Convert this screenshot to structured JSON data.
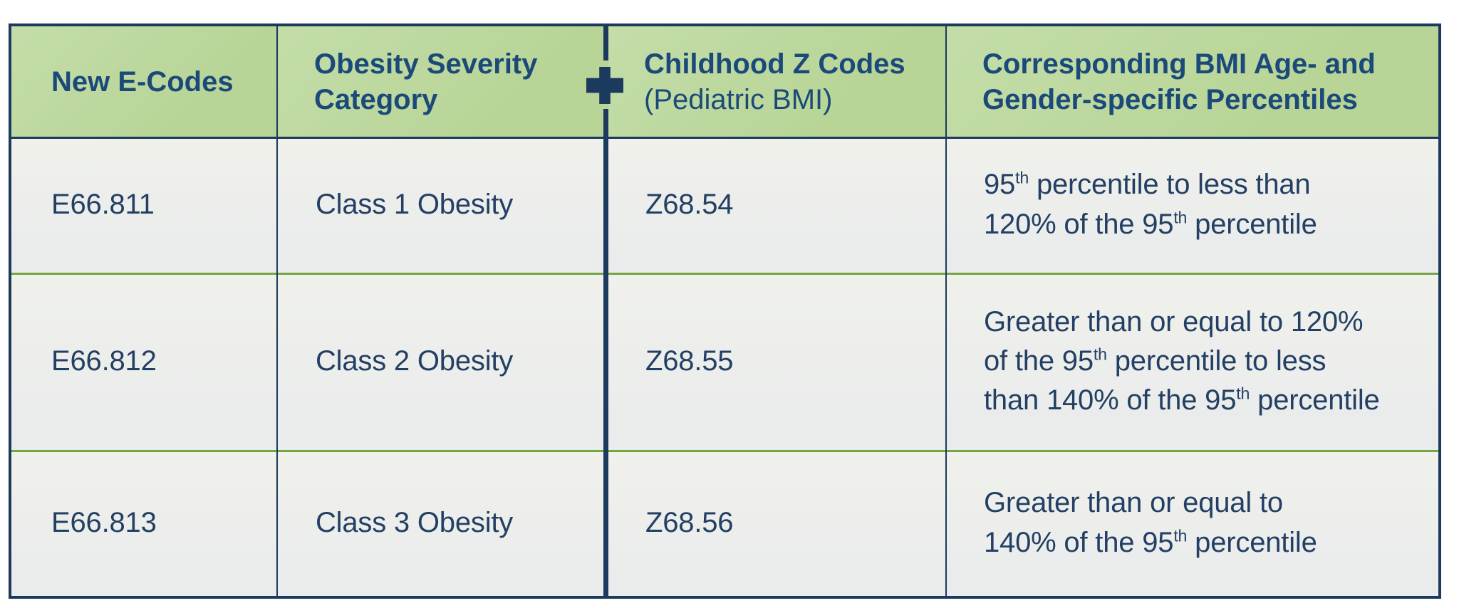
{
  "colors": {
    "page-bg": "#ffffff",
    "navy": "#1b3a5e",
    "header-green": "#b8d597",
    "header-green-light": "#c4dda9",
    "header-text": "#1b4a7a",
    "body-text": "#233f63",
    "cell-bg-top": "#f0f1eb",
    "cell-bg-bottom": "#e9ebec",
    "line-green": "#72a841"
  },
  "headers": {
    "col1_line1": "New E-Codes",
    "col2_line1": "Obesity Severity",
    "col2_line2": "Category",
    "col3_line1": "Childhood Z Codes",
    "col3_line2": "(Pediatric BMI)",
    "col4_line1": "Corresponding BMI Age- and",
    "col4_line2": "Gender-specific Percentiles"
  },
  "icons": {
    "plus_icon": "plus"
  },
  "rows": [
    {
      "e_code": "E66.811",
      "category": "Class 1 Obesity",
      "z_code": "Z68.54",
      "percentile": [
        {
          "t": "95"
        },
        {
          "sup": "th"
        },
        {
          "t": " percentile to less than"
        },
        {
          "br": true
        },
        {
          "t": "120% of the 95"
        },
        {
          "sup": "th"
        },
        {
          "t": " percentile"
        }
      ]
    },
    {
      "e_code": "E66.812",
      "category": "Class 2 Obesity",
      "z_code": "Z68.55",
      "percentile": [
        {
          "t": "Greater than or equal to 120%"
        },
        {
          "br": true
        },
        {
          "t": "of the 95"
        },
        {
          "sup": "th"
        },
        {
          "t": " percentile to less"
        },
        {
          "br": true
        },
        {
          "t": "than 140% of the 95"
        },
        {
          "sup": "th"
        },
        {
          "t": " percentile"
        }
      ]
    },
    {
      "e_code": "E66.813",
      "category": "Class 3 Obesity",
      "z_code": "Z68.56",
      "percentile": [
        {
          "t": "Greater than or equal to"
        },
        {
          "br": true
        },
        {
          "t": "140% of the 95"
        },
        {
          "sup": "th"
        },
        {
          "t": " percentile"
        }
      ]
    }
  ]
}
